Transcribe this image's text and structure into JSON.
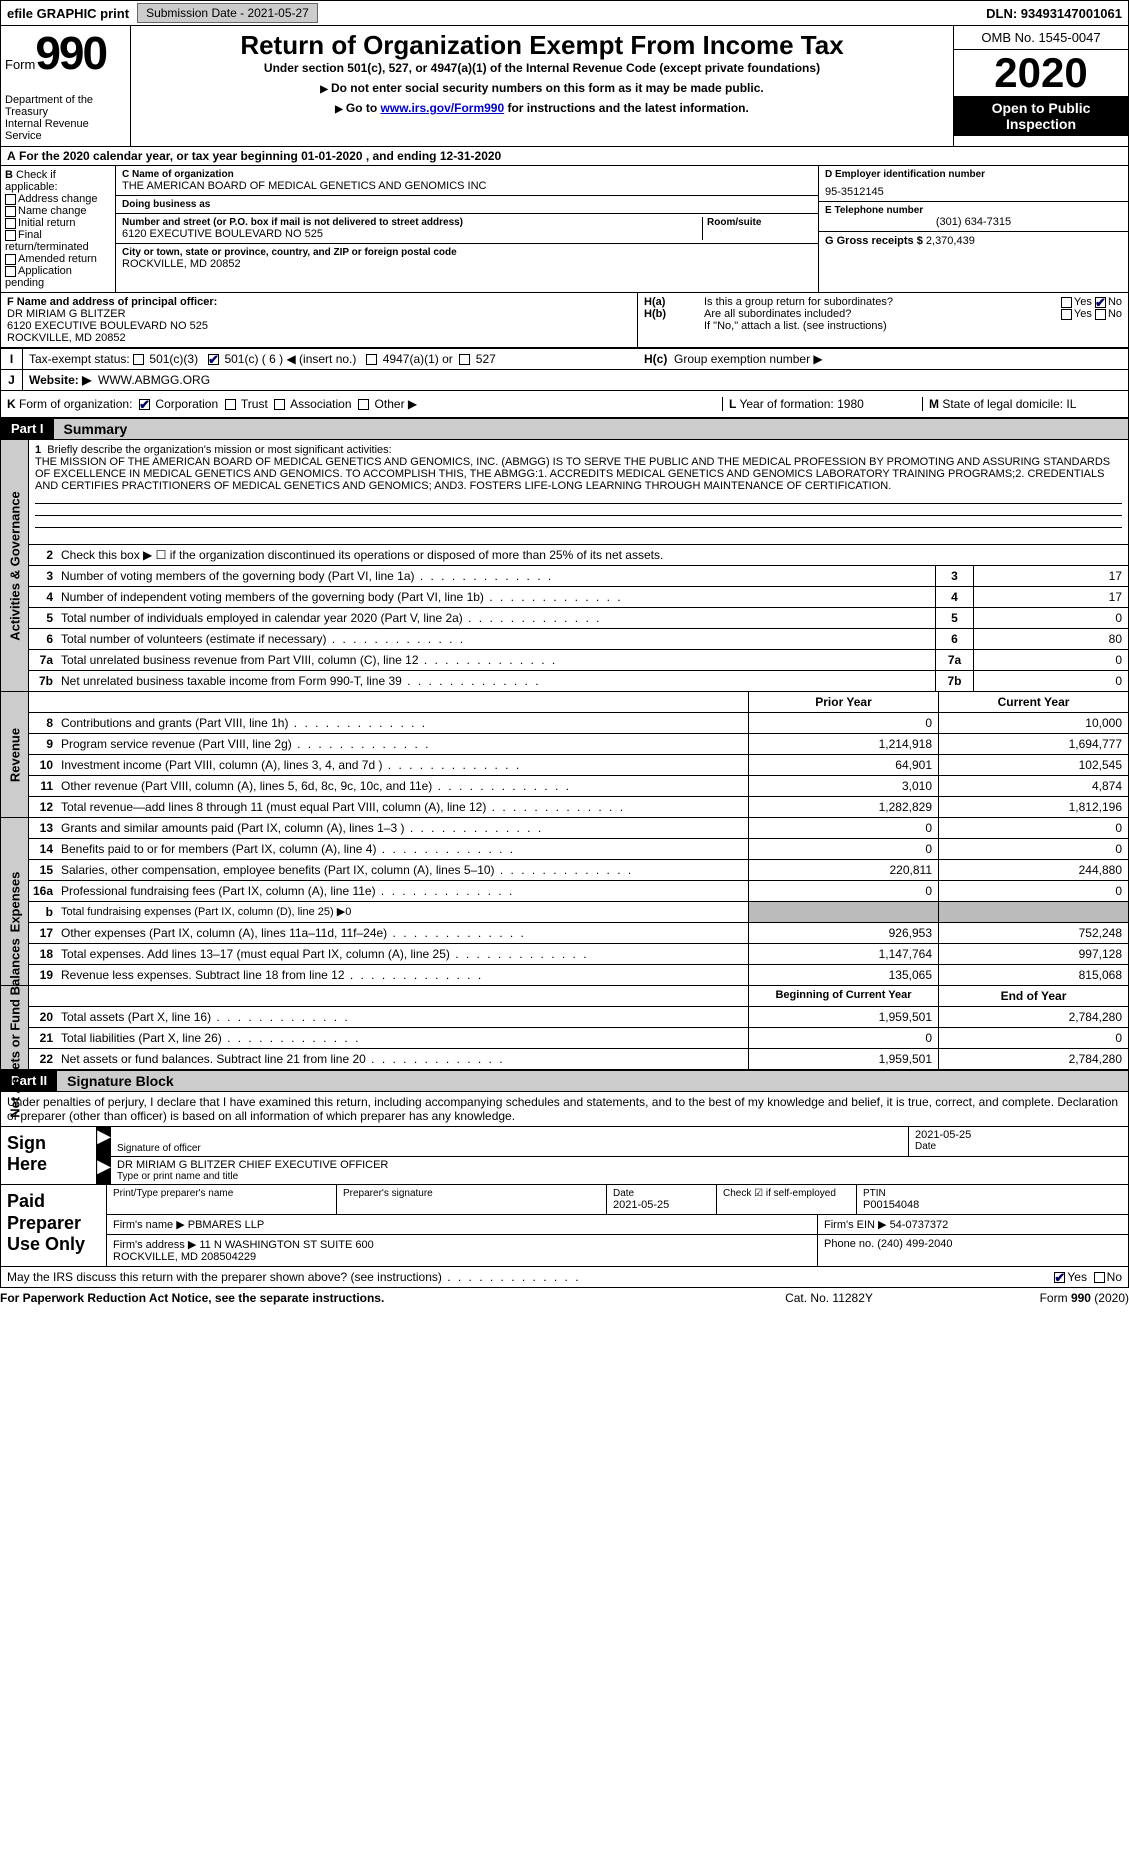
{
  "topbar": {
    "efile": "efile GRAPHIC print",
    "submission_label": "Submission Date - 2021-05-27",
    "dln": "DLN: 93493147001061"
  },
  "header": {
    "form_word": "Form",
    "form_num": "990",
    "dept": "Department of the Treasury\nInternal Revenue Service",
    "title": "Return of Organization Exempt From Income Tax",
    "subtitle": "Under section 501(c), 527, or 4947(a)(1) of the Internal Revenue Code (except private foundations)",
    "note1": "Do not enter social security numbers on this form as it may be made public.",
    "note2_pre": "Go to ",
    "note2_link": "www.irs.gov/Form990",
    "note2_post": " for instructions and the latest information.",
    "omb": "OMB No. 1545-0047",
    "year": "2020",
    "open_public": "Open to Public Inspection"
  },
  "rowA": "For the 2020 calendar year, or tax year beginning 01-01-2020   , and ending 12-31-2020",
  "B": {
    "label": "Check if applicable:",
    "addr": "Address change",
    "name": "Name change",
    "init": "Initial return",
    "final": "Final return/terminated",
    "amend": "Amended return",
    "app": "Application pending"
  },
  "C": {
    "name_label": "C Name of organization",
    "name": "THE AMERICAN BOARD OF MEDICAL GENETICS AND GENOMICS INC",
    "dba_label": "Doing business as",
    "street_label": "Number and street (or P.O. box if mail is not delivered to street address)",
    "room_label": "Room/suite",
    "street": "6120 EXECUTIVE BOULEVARD NO 525",
    "city_label": "City or town, state or province, country, and ZIP or foreign postal code",
    "city": "ROCKVILLE, MD  20852"
  },
  "D": {
    "label": "D Employer identification number",
    "val": "95-3512145"
  },
  "E": {
    "label": "E Telephone number",
    "val": "(301) 634-7315"
  },
  "G": {
    "label": "G Gross receipts $",
    "val": "2,370,439"
  },
  "F": {
    "label": "F  Name and address of principal officer:",
    "name": "DR MIRIAM G BLITZER",
    "street": "6120 EXECUTIVE BOULEVARD NO 525",
    "city": "ROCKVILLE, MD  20852"
  },
  "H": {
    "a": "Is this a group return for subordinates?",
    "b": "Are all subordinates included?",
    "b_note": "If \"No,\" attach a list. (see instructions)",
    "c": "Group exemption number ▶",
    "yes": "Yes",
    "no": "No"
  },
  "I": {
    "label": "Tax-exempt status:",
    "c3": "501(c)(3)",
    "c": "501(c) ( 6 ) ◀ (insert no.)",
    "a1": "4947(a)(1) or",
    "s527": "527"
  },
  "J": {
    "label": "Website: ▶",
    "val": "WWW.ABMGG.ORG"
  },
  "K": {
    "label": "Form of organization:",
    "corp": "Corporation",
    "trust": "Trust",
    "assoc": "Association",
    "other": "Other ▶"
  },
  "L": {
    "label": "Year of formation:",
    "val": "1980"
  },
  "M": {
    "label": "State of legal domicile:",
    "val": "IL"
  },
  "part1": {
    "num": "Part I",
    "title": "Summary"
  },
  "mission": {
    "prompt": "Briefly describe the organization's mission or most significant activities:",
    "text": "THE MISSION OF THE AMERICAN BOARD OF MEDICAL GENETICS AND GENOMICS, INC. (ABMGG) IS TO SERVE THE PUBLIC AND THE MEDICAL PROFESSION BY PROMOTING AND ASSURING STANDARDS OF EXCELLENCE IN MEDICAL GENETICS AND GENOMICS. TO ACCOMPLISH THIS, THE ABMGG:1. ACCREDITS MEDICAL GENETICS AND GENOMICS LABORATORY TRAINING PROGRAMS;2. CREDENTIALS AND CERTIFIES PRACTITIONERS OF MEDICAL GENETICS AND GENOMICS; AND3. FOSTERS LIFE-LONG LEARNING THROUGH MAINTENANCE OF CERTIFICATION."
  },
  "governance_rows": [
    {
      "n": "2",
      "t": "Check this box ▶ ☐  if the organization discontinued its operations or disposed of more than 25% of its net assets.",
      "box": "",
      "val": ""
    },
    {
      "n": "3",
      "t": "Number of voting members of the governing body (Part VI, line 1a)",
      "box": "3",
      "val": "17"
    },
    {
      "n": "4",
      "t": "Number of independent voting members of the governing body (Part VI, line 1b)",
      "box": "4",
      "val": "17"
    },
    {
      "n": "5",
      "t": "Total number of individuals employed in calendar year 2020 (Part V, line 2a)",
      "box": "5",
      "val": "0"
    },
    {
      "n": "6",
      "t": "Total number of volunteers (estimate if necessary)",
      "box": "6",
      "val": "80"
    },
    {
      "n": "7a",
      "t": "Total unrelated business revenue from Part VIII, column (C), line 12",
      "box": "7a",
      "val": "0"
    },
    {
      "n": "7b",
      "t": "Net unrelated business taxable income from Form 990-T, line 39",
      "box": "7b",
      "val": "0"
    }
  ],
  "col_hdr": {
    "py": "Prior Year",
    "cy": "Current Year"
  },
  "revenue_rows": [
    {
      "n": "8",
      "t": "Contributions and grants (Part VIII, line 1h)",
      "py": "0",
      "cy": "10,000"
    },
    {
      "n": "9",
      "t": "Program service revenue (Part VIII, line 2g)",
      "py": "1,214,918",
      "cy": "1,694,777"
    },
    {
      "n": "10",
      "t": "Investment income (Part VIII, column (A), lines 3, 4, and 7d )",
      "py": "64,901",
      "cy": "102,545"
    },
    {
      "n": "11",
      "t": "Other revenue (Part VIII, column (A), lines 5, 6d, 8c, 9c, 10c, and 11e)",
      "py": "3,010",
      "cy": "4,874"
    },
    {
      "n": "12",
      "t": "Total revenue—add lines 8 through 11 (must equal Part VIII, column (A), line 12)",
      "py": "1,282,829",
      "cy": "1,812,196"
    }
  ],
  "expense_rows": [
    {
      "n": "13",
      "t": "Grants and similar amounts paid (Part IX, column (A), lines 1–3 )",
      "py": "0",
      "cy": "0"
    },
    {
      "n": "14",
      "t": "Benefits paid to or for members (Part IX, column (A), line 4)",
      "py": "0",
      "cy": "0"
    },
    {
      "n": "15",
      "t": "Salaries, other compensation, employee benefits (Part IX, column (A), lines 5–10)",
      "py": "220,811",
      "cy": "244,880"
    },
    {
      "n": "16a",
      "t": "Professional fundraising fees (Part IX, column (A), line 11e)",
      "py": "0",
      "cy": "0"
    },
    {
      "n": "b",
      "t": "Total fundraising expenses (Part IX, column (D), line 25) ▶0",
      "py": "",
      "cy": "",
      "shaded": true
    },
    {
      "n": "17",
      "t": "Other expenses (Part IX, column (A), lines 11a–11d, 11f–24e)",
      "py": "926,953",
      "cy": "752,248"
    },
    {
      "n": "18",
      "t": "Total expenses. Add lines 13–17 (must equal Part IX, column (A), line 25)",
      "py": "1,147,764",
      "cy": "997,128"
    },
    {
      "n": "19",
      "t": "Revenue less expenses. Subtract line 18 from line 12",
      "py": "135,065",
      "cy": "815,068"
    }
  ],
  "net_hdr": {
    "py": "Beginning of Current Year",
    "cy": "End of Year"
  },
  "net_rows": [
    {
      "n": "20",
      "t": "Total assets (Part X, line 16)",
      "py": "1,959,501",
      "cy": "2,784,280"
    },
    {
      "n": "21",
      "t": "Total liabilities (Part X, line 26)",
      "py": "0",
      "cy": "0"
    },
    {
      "n": "22",
      "t": "Net assets or fund balances. Subtract line 21 from line 20",
      "py": "1,959,501",
      "cy": "2,784,280"
    }
  ],
  "part2": {
    "num": "Part II",
    "title": "Signature Block"
  },
  "sig": {
    "decl": "Under penalties of perjury, I declare that I have examined this return, including accompanying schedules and statements, and to the best of my knowledge and belief, it is true, correct, and complete. Declaration of preparer (other than officer) is based on all information of which preparer has any knowledge.",
    "sign_here": "Sign Here",
    "sig_of_officer": "Signature of officer",
    "date_lbl": "Date",
    "date": "2021-05-25",
    "name_title": "DR MIRIAM G BLITZER  CHIEF EXECUTIVE OFFICER",
    "type_lbl": "Type or print name and title"
  },
  "paid": {
    "title": "Paid Preparer Use Only",
    "print_name_lbl": "Print/Type preparer's name",
    "sig_lbl": "Preparer's signature",
    "date_lbl": "Date",
    "date": "2021-05-25",
    "check_lbl": "Check ☑ if self-employed",
    "ptin_lbl": "PTIN",
    "ptin": "P00154048",
    "firm_name_lbl": "Firm's name    ▶",
    "firm_name": "PBMARES LLP",
    "firm_ein_lbl": "Firm's EIN ▶",
    "firm_ein": "54-0737372",
    "firm_addr_lbl": "Firm's address ▶",
    "firm_addr": "11 N WASHINGTON ST SUITE 600\nROCKVILLE, MD  208504229",
    "phone_lbl": "Phone no.",
    "phone": "(240) 499-2040"
  },
  "discuss": {
    "q": "May the IRS discuss this return with the preparer shown above? (see instructions)",
    "yes": "Yes",
    "no": "No"
  },
  "footer": {
    "left": "For Paperwork Reduction Act Notice, see the separate instructions.",
    "mid": "Cat. No. 11282Y",
    "right": "Form 990 (2020)"
  },
  "tabs": {
    "gov": "Activities & Governance",
    "rev": "Revenue",
    "exp": "Expenses",
    "net": "Net Assets or Fund Balances"
  }
}
